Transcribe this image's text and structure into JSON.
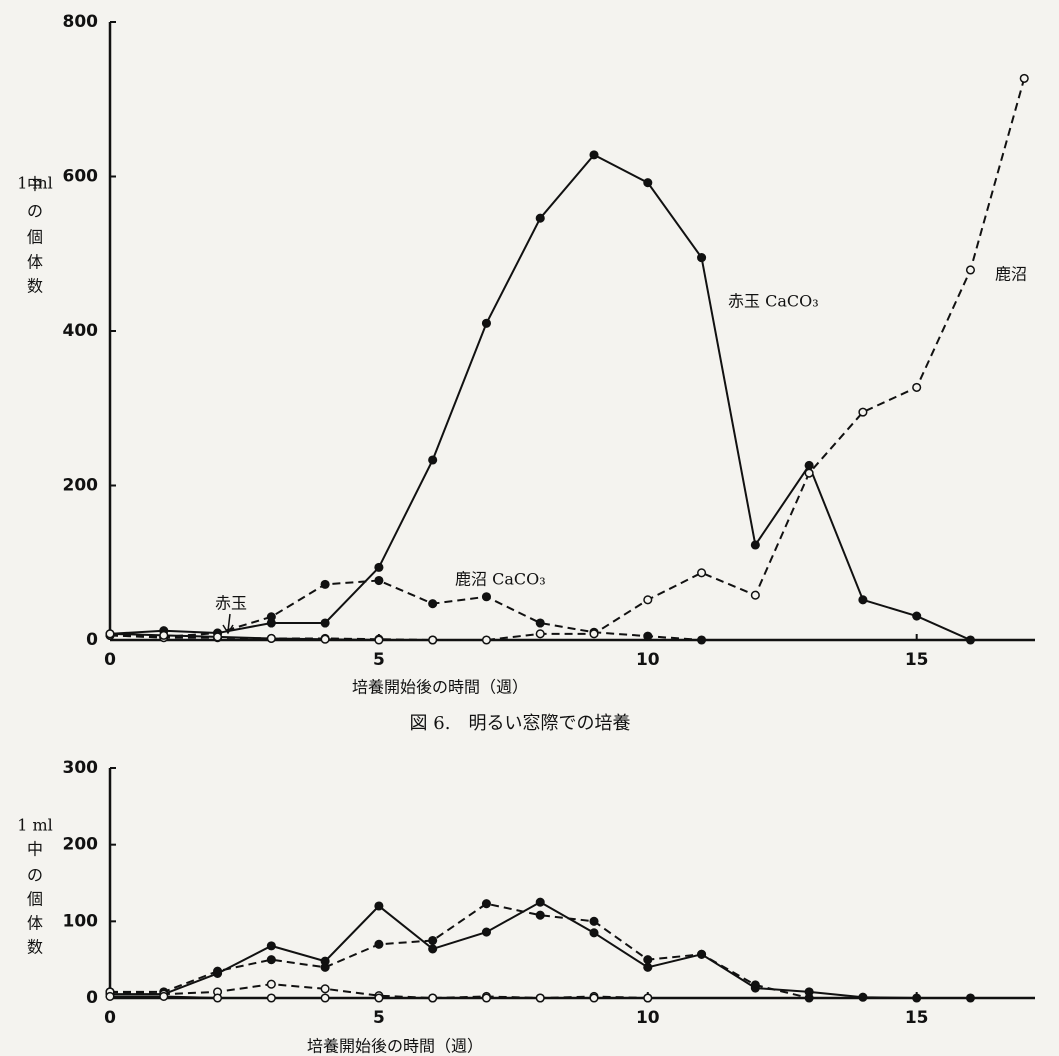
{
  "chart_data": [
    {
      "type": "line",
      "ylabel": [
        "1 ml",
        "中",
        "の",
        "個",
        "体",
        "数"
      ],
      "xlabel": "培養開始後の時間（週）",
      "caption": "図 6.　明るい窓際での培養",
      "x": [
        0,
        1,
        2,
        3,
        4,
        5,
        6,
        7,
        8,
        9,
        10,
        11,
        12,
        13,
        14,
        15,
        16,
        17
      ],
      "xlim": [
        0,
        17.2
      ],
      "xticks": [
        0,
        5,
        10,
        15
      ],
      "ylim": [
        0,
        800
      ],
      "yticks": [
        0,
        200,
        400,
        600,
        800
      ],
      "series": [
        {
          "name": "赤玉 CaCO₃",
          "color": "#111111",
          "line": "solid",
          "marker": "filled",
          "values": [
            8,
            12,
            9,
            22,
            22,
            94,
            233,
            410,
            546,
            628,
            592,
            495,
            123,
            226,
            52,
            31,
            0,
            null
          ]
        },
        {
          "name": "鹿沼 CaCO₃",
          "color": "#111111",
          "line": "dashed",
          "marker": "filled",
          "values": [
            6,
            4,
            9,
            30,
            72,
            77,
            47,
            56,
            22,
            10,
            5,
            0,
            null,
            null,
            null,
            null,
            null,
            null
          ]
        },
        {
          "name": "鹿沼",
          "color": "#111111",
          "line": "dashed",
          "marker": "open",
          "values": [
            6,
            3,
            3,
            2,
            2,
            1,
            0,
            0,
            8,
            8,
            52,
            87,
            58,
            216,
            295,
            327,
            479,
            727
          ]
        },
        {
          "name": "赤玉",
          "color": "#111111",
          "line": "solid",
          "marker": "open",
          "values": [
            8,
            6,
            4,
            2,
            1,
            0,
            0,
            null,
            null,
            null,
            null,
            null,
            null,
            null,
            null,
            null,
            null,
            null
          ]
        }
      ]
    },
    {
      "type": "line",
      "ylabel": [
        "1 ml",
        "中",
        "の",
        "個",
        "体",
        "数"
      ],
      "xlabel": "培養開始後の時間（週）",
      "x": [
        0,
        1,
        2,
        3,
        4,
        5,
        6,
        7,
        8,
        9,
        10,
        11,
        12,
        13,
        14,
        15,
        16,
        17
      ],
      "xlim": [
        0,
        17.2
      ],
      "xticks": [
        0,
        5,
        10,
        15
      ],
      "ylim": [
        0,
        300
      ],
      "yticks": [
        0,
        100,
        200,
        300
      ],
      "series": [
        {
          "color": "#111111",
          "line": "solid",
          "marker": "filled",
          "values": [
            5,
            5,
            32,
            68,
            48,
            120,
            64,
            86,
            125,
            85,
            40,
            57,
            13,
            8,
            1,
            0,
            0,
            null
          ]
        },
        {
          "color": "#111111",
          "line": "dashed",
          "marker": "filled",
          "values": [
            8,
            8,
            35,
            50,
            40,
            70,
            75,
            123,
            108,
            100,
            50,
            57,
            17,
            0,
            null,
            null,
            null,
            null
          ]
        },
        {
          "color": "#111111",
          "line": "dashed",
          "marker": "open",
          "values": [
            8,
            5,
            8,
            18,
            12,
            3,
            0,
            2,
            0,
            2,
            0,
            null,
            null,
            null,
            null,
            null,
            null,
            null
          ]
        },
        {
          "color": "#111111",
          "line": "solid",
          "marker": "open",
          "values": [
            2,
            2,
            0,
            0,
            0,
            0,
            0,
            0,
            0,
            0,
            0,
            null,
            null,
            null,
            null,
            null,
            null,
            null
          ]
        }
      ]
    }
  ]
}
